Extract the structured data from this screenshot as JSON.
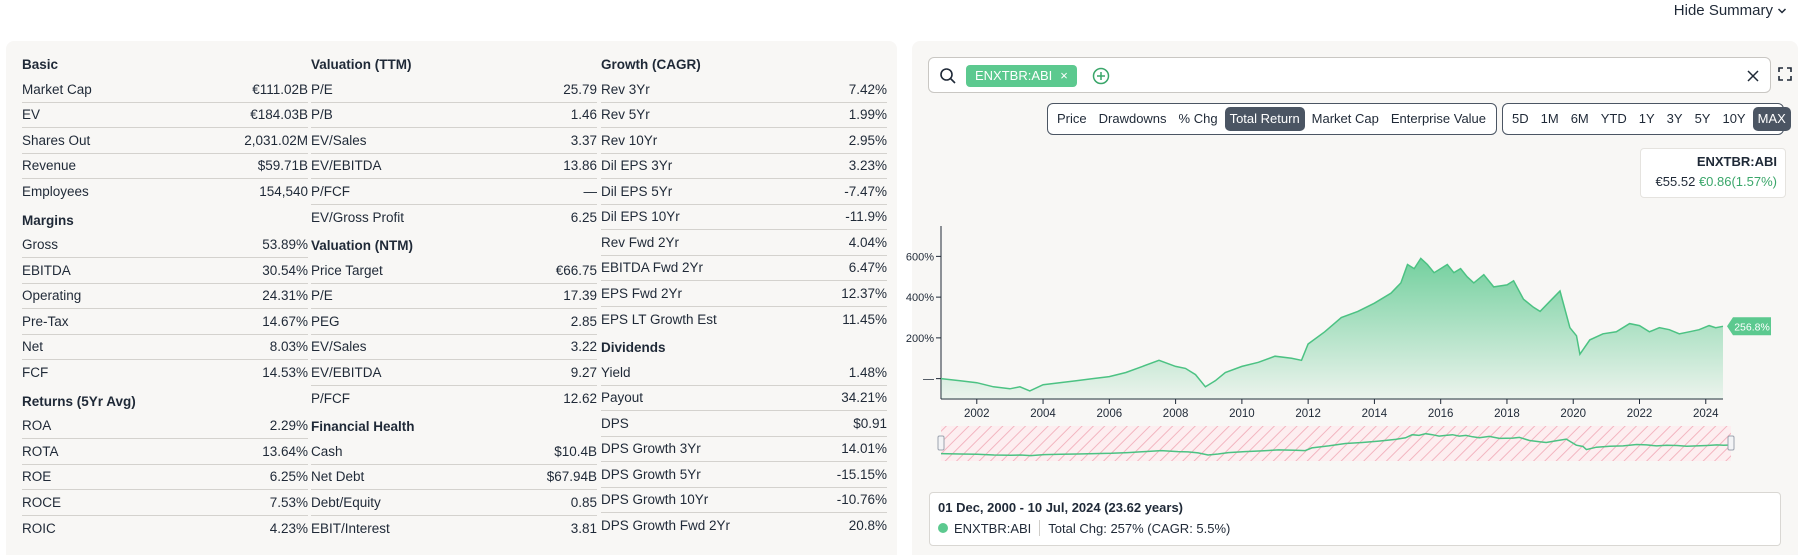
{
  "header": {
    "hide_summary": "Hide Summary"
  },
  "left": {
    "col1": [
      {
        "title": "Basic",
        "rows": [
          {
            "label": "Market Cap",
            "value": "€111.02B"
          },
          {
            "label": "EV",
            "value": "€184.03B"
          },
          {
            "label": "Shares Out",
            "value": "2,031.02M"
          },
          {
            "label": "Revenue",
            "value": "$59.71B"
          },
          {
            "label": "Employees",
            "value": "154,540"
          }
        ]
      },
      {
        "title": "Margins",
        "rows": [
          {
            "label": "Gross",
            "value": "53.89%"
          },
          {
            "label": "EBITDA",
            "value": "30.54%"
          },
          {
            "label": "Operating",
            "value": "24.31%"
          },
          {
            "label": "Pre-Tax",
            "value": "14.67%"
          },
          {
            "label": "Net",
            "value": "8.03%"
          },
          {
            "label": "FCF",
            "value": "14.53%"
          }
        ]
      },
      {
        "title": "Returns (5Yr Avg)",
        "rows": [
          {
            "label": "ROA",
            "value": "2.29%"
          },
          {
            "label": "ROTA",
            "value": "13.64%"
          },
          {
            "label": "ROE",
            "value": "6.25%"
          },
          {
            "label": "ROCE",
            "value": "7.53%"
          },
          {
            "label": "ROIC",
            "value": "4.23%"
          }
        ]
      }
    ],
    "col2": [
      {
        "title": "Valuation (TTM)",
        "rows": [
          {
            "label": "P/E",
            "value": "25.79"
          },
          {
            "label": "P/B",
            "value": "1.46"
          },
          {
            "label": "EV/Sales",
            "value": "3.37"
          },
          {
            "label": "EV/EBITDA",
            "value": "13.86"
          },
          {
            "label": "P/FCF",
            "value": "—"
          },
          {
            "label": "EV/Gross Profit",
            "value": "6.25"
          }
        ]
      },
      {
        "title": "Valuation (NTM)",
        "rows": [
          {
            "label": "Price Target",
            "value": "€66.75"
          },
          {
            "label": "P/E",
            "value": "17.39"
          },
          {
            "label": "PEG",
            "value": "2.85"
          },
          {
            "label": "EV/Sales",
            "value": "3.22"
          },
          {
            "label": "EV/EBITDA",
            "value": "9.27"
          },
          {
            "label": "P/FCF",
            "value": "12.62"
          }
        ]
      },
      {
        "title": "Financial Health",
        "rows": [
          {
            "label": "Cash",
            "value": "$10.4B"
          },
          {
            "label": "Net Debt",
            "value": "$67.94B"
          },
          {
            "label": "Debt/Equity",
            "value": "0.85"
          },
          {
            "label": "EBIT/Interest",
            "value": "3.81"
          }
        ]
      }
    ],
    "col3": [
      {
        "title": "Growth (CAGR)",
        "rows": [
          {
            "label": "Rev 3Yr",
            "value": "7.42%"
          },
          {
            "label": "Rev 5Yr",
            "value": "1.99%"
          },
          {
            "label": "Rev 10Yr",
            "value": "2.95%"
          },
          {
            "label": "Dil EPS 3Yr",
            "value": "3.23%"
          },
          {
            "label": "Dil EPS 5Yr",
            "value": "-7.47%"
          },
          {
            "label": "Dil EPS 10Yr",
            "value": "-11.9%"
          },
          {
            "label": "Rev Fwd 2Yr",
            "value": "4.04%"
          },
          {
            "label": "EBITDA Fwd 2Yr",
            "value": "6.47%"
          },
          {
            "label": "EPS Fwd 2Yr",
            "value": "12.37%"
          },
          {
            "label": "EPS LT Growth Est",
            "value": "11.45%"
          }
        ]
      },
      {
        "title": "Dividends",
        "rows": [
          {
            "label": "Yield",
            "value": "1.48%"
          },
          {
            "label": "Payout",
            "value": "34.21%"
          },
          {
            "label": "DPS",
            "value": "$0.91"
          },
          {
            "label": "DPS Growth 3Yr",
            "value": "14.01%"
          },
          {
            "label": "DPS Growth 5Yr",
            "value": "-15.15%"
          },
          {
            "label": "DPS Growth 10Yr",
            "value": "-10.76%"
          },
          {
            "label": "DPS Growth Fwd 2Yr",
            "value": "20.8%"
          }
        ]
      }
    ]
  },
  "search": {
    "ticker": "ENXTBR:ABI"
  },
  "metric_buttons": [
    {
      "label": "Price",
      "active": false
    },
    {
      "label": "Drawdowns",
      "active": false
    },
    {
      "label": "% Chg",
      "active": false
    },
    {
      "label": "Total Return",
      "active": true
    },
    {
      "label": "Market Cap",
      "active": false
    },
    {
      "label": "Enterprise Value",
      "active": false
    }
  ],
  "range_buttons": [
    {
      "label": "5D",
      "active": false
    },
    {
      "label": "1M",
      "active": false
    },
    {
      "label": "6M",
      "active": false
    },
    {
      "label": "YTD",
      "active": false
    },
    {
      "label": "1Y",
      "active": false
    },
    {
      "label": "3Y",
      "active": false
    },
    {
      "label": "5Y",
      "active": false
    },
    {
      "label": "10Y",
      "active": false
    },
    {
      "label": "MAX",
      "active": true
    }
  ],
  "legend": {
    "ticker": "ENXTBR:ABI",
    "price": "€55.52",
    "change": "€0.86(1.57%)"
  },
  "colors": {
    "line": "#4cc283",
    "fill_top": "#5cc98f",
    "badge": "#5cc98f",
    "active": "#4b5563"
  },
  "chart_data": {
    "type": "area",
    "series": [
      {
        "name": "ENXTBR:ABI"
      }
    ],
    "x": [
      2000.92,
      2001.5,
      2002.0,
      2002.5,
      2003.0,
      2003.3,
      2003.6,
      2004.0,
      2004.5,
      2005.0,
      2005.5,
      2006.0,
      2006.5,
      2007.0,
      2007.5,
      2008.0,
      2008.3,
      2008.6,
      2008.9,
      2009.2,
      2009.5,
      2010.0,
      2010.5,
      2011.0,
      2011.5,
      2011.8,
      2012.0,
      2012.5,
      2013.0,
      2013.5,
      2014.0,
      2014.5,
      2014.8,
      2015.0,
      2015.2,
      2015.4,
      2015.6,
      2015.8,
      2016.0,
      2016.2,
      2016.4,
      2016.6,
      2016.8,
      2017.0,
      2017.3,
      2017.6,
      2018.0,
      2018.2,
      2018.5,
      2018.8,
      2019.0,
      2019.3,
      2019.6,
      2019.9,
      2020.1,
      2020.2,
      2020.5,
      2020.9,
      2021.3,
      2021.7,
      2022.0,
      2022.3,
      2022.6,
      2022.9,
      2023.2,
      2023.5,
      2023.8,
      2024.1,
      2024.3,
      2024.52
    ],
    "y": [
      0,
      -10,
      -20,
      -40,
      -50,
      -40,
      -60,
      -30,
      -20,
      -10,
      0,
      10,
      30,
      60,
      90,
      60,
      50,
      20,
      -40,
      -10,
      30,
      60,
      80,
      110,
      100,
      90,
      170,
      230,
      300,
      330,
      370,
      420,
      470,
      560,
      540,
      590,
      560,
      520,
      540,
      560,
      520,
      540,
      500,
      470,
      510,
      450,
      460,
      480,
      390,
      350,
      330,
      380,
      430,
      250,
      210,
      120,
      190,
      220,
      230,
      270,
      260,
      230,
      250,
      240,
      220,
      230,
      240,
      260,
      250,
      256.8
    ],
    "yticks": [
      "—",
      "200%",
      "400%",
      "600%"
    ],
    "ytick_values": [
      0,
      200,
      400,
      600
    ],
    "xticks": [
      "2002",
      "2004",
      "2006",
      "2008",
      "2010",
      "2012",
      "2014",
      "2016",
      "2018",
      "2020",
      "2022",
      "2024"
    ],
    "xtick_values": [
      2002,
      2004,
      2006,
      2008,
      2010,
      2012,
      2014,
      2016,
      2018,
      2020,
      2022,
      2024
    ],
    "xlim": [
      2000.92,
      2024.52
    ],
    "ylim": [
      -100,
      700
    ],
    "end_label": "256.8%"
  },
  "info": {
    "range": "01 Dec, 2000 - 10 Jul, 2024 (23.62 years)",
    "ticker": "ENXTBR:ABI",
    "total": "Total Chg: 257% (CAGR: 5.5%)"
  }
}
